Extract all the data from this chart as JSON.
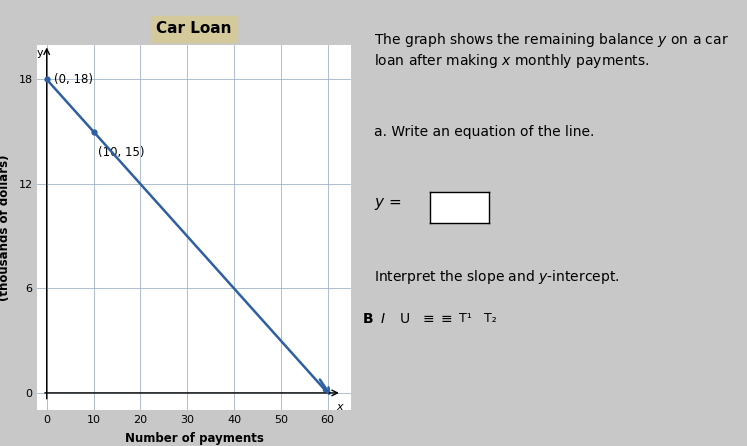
{
  "title": "Car Loan",
  "xlabel": "Number of payments",
  "ylabel": "Balance\n(thousands of dollars)",
  "xlim": [
    -2,
    65
  ],
  "ylim": [
    -1,
    20
  ],
  "xticks": [
    0,
    10,
    20,
    30,
    40,
    50,
    60
  ],
  "yticks": [
    0,
    6,
    12,
    18
  ],
  "line_x": [
    0,
    60
  ],
  "line_y": [
    18,
    0
  ],
  "points": [
    [
      0,
      18
    ],
    [
      10,
      15
    ]
  ],
  "point_labels": [
    "(0, 18)",
    "(10, 15)"
  ],
  "line_color": "#2e5fa3",
  "arrow_color": "#2e5fa3",
  "grid_color": "#a0b4c8",
  "title_bg_color": "#d4c99a",
  "plot_bg_color": "#ffffff",
  "outer_bg_color": "#e8e8e8",
  "title_fontsize": 11,
  "label_fontsize": 8.5,
  "tick_fontsize": 8,
  "annotation_fontsize": 8.5
}
